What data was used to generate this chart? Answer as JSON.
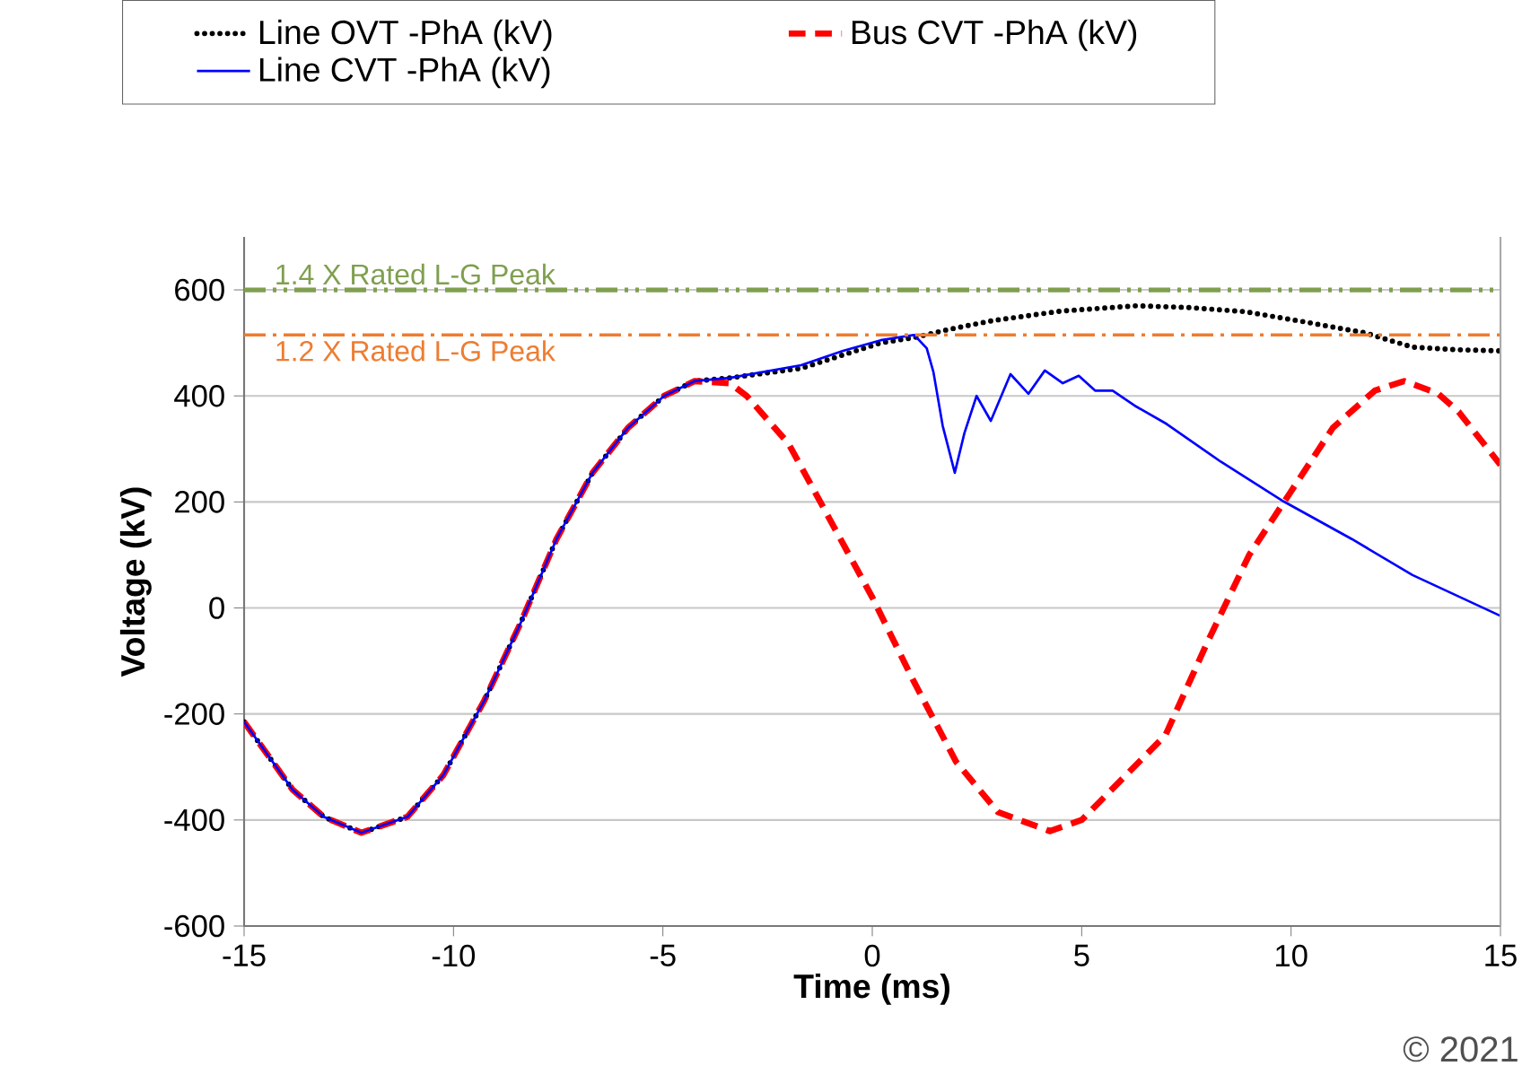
{
  "chart_data": {
    "type": "line",
    "xlabel": "Time (ms)",
    "ylabel": "Voltage (kV)",
    "xlim": [
      -15,
      15
    ],
    "ylim": [
      -600,
      700
    ],
    "xticks": [
      -15,
      -10,
      -5,
      0,
      5,
      10,
      15
    ],
    "yticks": [
      -600,
      -400,
      -200,
      0,
      200,
      400,
      600
    ],
    "grid": "y",
    "legend": "top",
    "marker": "none",
    "series": [
      {
        "name": "Line OVT -PhA (kV)",
        "color": "#000000",
        "line_style": "dotted",
        "x": [
          -15,
          -13.84,
          -13.1,
          -12.2,
          -11.1,
          -10.24,
          -9.26,
          -8.4,
          -7.54,
          -6.68,
          -5.83,
          -4.97,
          -4.24,
          -3.4,
          -1.7,
          0.2,
          1.0,
          1.8,
          2.87,
          4.5,
          6.3,
          7.5,
          8.9,
          10.3,
          11.76,
          12.9,
          14,
          15
        ],
        "values": [
          -215,
          -343,
          -394,
          -424,
          -394,
          -315,
          -174,
          -29,
          130,
          255,
          340,
          400,
          428,
          434,
          452,
          500,
          510,
          525,
          542,
          560,
          570,
          567,
          559,
          540,
          519,
          492,
          487,
          485
        ]
      },
      {
        "name": "Bus CVT -PhA (kV)",
        "color": "#ff0000",
        "line_style": "dashed",
        "x": [
          -15,
          -13.84,
          -13.1,
          -12.2,
          -11.1,
          -10.24,
          -9.26,
          -8.4,
          -7.54,
          -6.68,
          -5.83,
          -4.97,
          -4.24,
          -3.4,
          -3,
          -2,
          -1,
          0,
          1,
          2,
          3,
          4.24,
          5,
          6,
          7,
          8,
          9,
          10,
          11,
          12,
          12.7,
          13.5,
          14,
          15
        ],
        "values": [
          -215,
          -343,
          -394,
          -424,
          -394,
          -315,
          -174,
          -29,
          130,
          255,
          340,
          400,
          428,
          424,
          400,
          310,
          165,
          20,
          -140,
          -290,
          -385,
          -421,
          -400,
          -320,
          -240,
          -65,
          100,
          220,
          340,
          410,
          428,
          405,
          370,
          270
        ]
      },
      {
        "name": "Line CVT -PhA (kV)",
        "color": "#0000ff",
        "line_style": "solid",
        "x": [
          -15,
          -13.84,
          -13.1,
          -12.2,
          -11.1,
          -10.24,
          -9.26,
          -8.4,
          -7.54,
          -6.68,
          -5.83,
          -4.97,
          -4.24,
          -3.4,
          -1.7,
          -0.7,
          0.2,
          1.0,
          1.3,
          1.46,
          1.68,
          1.97,
          2.2,
          2.49,
          2.83,
          3.3,
          3.73,
          4.12,
          4.55,
          4.93,
          5.32,
          5.74,
          6.3,
          7.03,
          8.32,
          9.82,
          11.45,
          12.9,
          15
        ],
        "values": [
          -215,
          -343,
          -394,
          -424,
          -394,
          -315,
          -174,
          -29,
          130,
          255,
          340,
          400,
          428,
          434,
          458,
          485,
          505,
          515,
          490,
          445,
          344,
          255,
          330,
          400,
          353,
          441,
          404,
          448,
          424,
          438,
          410,
          410,
          380,
          347,
          276,
          201,
          130,
          62,
          -15
        ]
      }
    ],
    "ref_lines": [
      {
        "axis": "y",
        "value": 600,
        "label": "1.4 X Rated L-G Peak",
        "color": "#7f9f4f",
        "line_style": "dashdotdot"
      },
      {
        "axis": "y",
        "value": 515,
        "label": "1.2 X Rated L-G Peak",
        "color": "#ed7d31",
        "line_style": "dashdot"
      }
    ],
    "annotations": [
      "© 2021"
    ]
  }
}
